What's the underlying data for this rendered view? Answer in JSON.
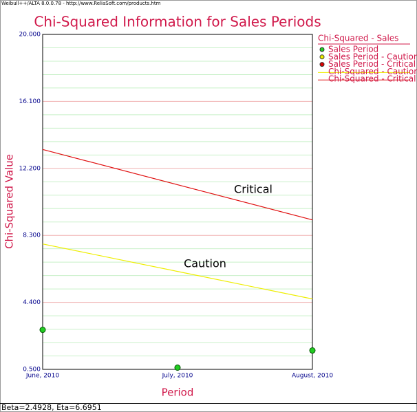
{
  "header": "Weibull++/ALTA 8.0.0.78 - http://www.ReliaSoft.com/products.htm",
  "footer": "Beta=2.4928, Eta=6.6951",
  "chart_data": {
    "type": "line",
    "title": "Chi-Squared Information for Sales Periods",
    "x_label": "Period",
    "y_label": "Chi-Squared Value",
    "legend_title": "Chi-Squared - Sales",
    "categories": [
      "June, 2010",
      "July, 2010",
      "August, 2010"
    ],
    "series": [
      {
        "name": "Sales Period",
        "kind": "points",
        "color": "#22cc22",
        "values": [
          2.8,
          0.6,
          1.6
        ]
      },
      {
        "name": "Sales Period - Caution",
        "kind": "points",
        "color": "#eeee00",
        "values": [
          null,
          null,
          null
        ]
      },
      {
        "name": "Sales Period - Critical",
        "kind": "points",
        "color": "#dd0000",
        "values": [
          null,
          null,
          null
        ]
      },
      {
        "name": "Chi-Squared - Caution",
        "kind": "line",
        "color": "#eeee00",
        "values": [
          7.8,
          6.2,
          4.6
        ]
      },
      {
        "name": "Chi-Squared - Critical",
        "kind": "line",
        "color": "#e01010",
        "values": [
          13.3,
          11.25,
          9.2
        ]
      }
    ],
    "annotations": [
      "Critical",
      "Caution"
    ],
    "ylim": [
      0.5,
      20
    ],
    "yticks": [
      {
        "value": 0.5,
        "label": "0.500"
      },
      {
        "value": 4.4,
        "label": "4.400"
      },
      {
        "value": 8.3,
        "label": "8.300"
      },
      {
        "value": 12.2,
        "label": "12.200"
      },
      {
        "value": 16.1,
        "label": "16.100"
      },
      {
        "value": 20,
        "label": "20.000"
      }
    ],
    "grid": true,
    "minor_grid_divisions": 5,
    "legend": "right"
  }
}
